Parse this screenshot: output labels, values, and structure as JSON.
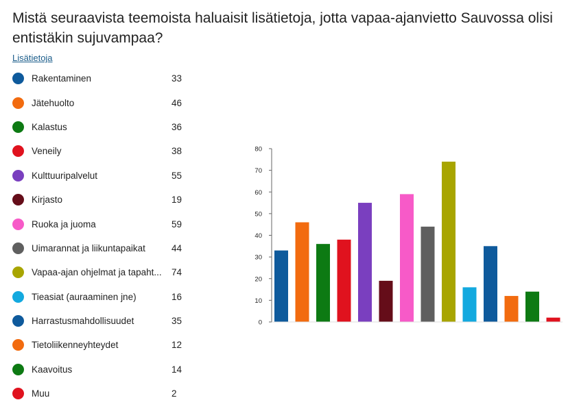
{
  "question": "Mistä seuraavista teemoista haluaisit lisätietoja, jotta vapaa-ajanvietto Sauvossa olisi entistäkin sujuvampaa?",
  "more_info_link": "Lisätietoja",
  "chart_data": {
    "type": "bar",
    "categories": [
      "Rakentaminen",
      "Jätehuolto",
      "Kalastus",
      "Veneily",
      "Kulttuuripalvelut",
      "Kirjasto",
      "Ruoka ja juoma",
      "Uimarannat ja liikuntapaikat",
      "Vapaa-ajan ohjelmat ja tapaht...",
      "Tieasiat (auraaminen jne)",
      "Harrastusmahdollisuudet",
      "Tietoliikenneyhteydet",
      "Kaavoitus",
      "Muu"
    ],
    "values": [
      33,
      46,
      36,
      38,
      55,
      19,
      59,
      44,
      74,
      16,
      35,
      12,
      14,
      2
    ],
    "colors": [
      "#0e5a9c",
      "#f26b0f",
      "#0d7a13",
      "#e0121e",
      "#7a3fbf",
      "#650d19",
      "#f75ac8",
      "#5f5f5f",
      "#a8a500",
      "#13a9df",
      "#0e5a9c",
      "#f26b0f",
      "#0d7a13",
      "#e0121e"
    ],
    "yticks": [
      "0",
      "10",
      "20",
      "30",
      "40",
      "50",
      "60",
      "70",
      "80"
    ],
    "ylim": [
      0,
      80
    ],
    "grid": false,
    "legend_position": "left"
  }
}
